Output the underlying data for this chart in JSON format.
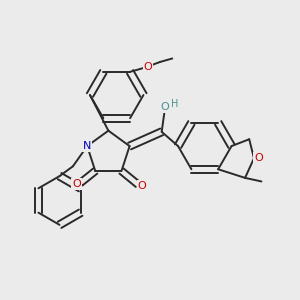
{
  "bg_color": "#ebebeb",
  "bond_color": "#2a2a2a",
  "bond_width": 1.4,
  "atom_colors": {
    "O": "#cc0000",
    "N": "#0000bb",
    "OH": "#4a9090",
    "C": "#2a2a2a"
  },
  "font_size_atom": 8.0,
  "font_size_H": 7.0
}
